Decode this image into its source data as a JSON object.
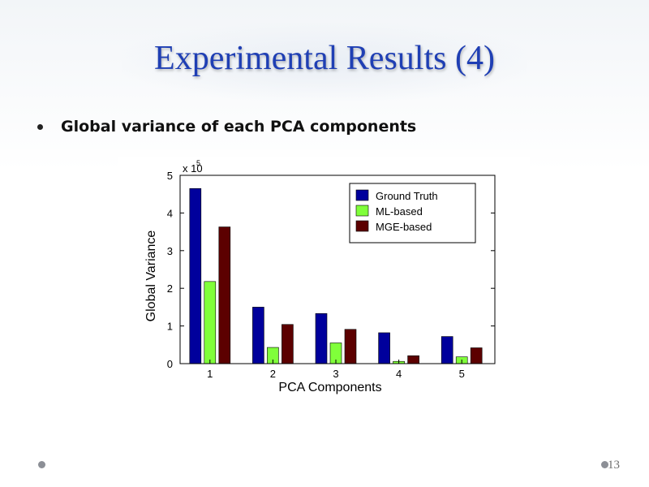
{
  "slide": {
    "title": "Experimental Results (4)",
    "bullet": "Global variance of each PCA components",
    "page_number": "13"
  },
  "colors": {
    "title": "#1f3fb4",
    "ground_truth": "#00009c",
    "ml_based": "#80ff3a",
    "mge_based": "#5c0000"
  },
  "chart_data": {
    "type": "bar",
    "categories": [
      "1",
      "2",
      "3",
      "4",
      "5"
    ],
    "series": [
      {
        "name": "Ground Truth",
        "color": "#00009c",
        "values": [
          4.65,
          1.5,
          1.33,
          0.82,
          0.72
        ]
      },
      {
        "name": "ML-based",
        "color": "#80ff3a",
        "values": [
          2.18,
          0.43,
          0.55,
          0.06,
          0.18
        ]
      },
      {
        "name": "MGE-based",
        "color": "#5c0000",
        "values": [
          3.63,
          1.04,
          0.91,
          0.21,
          0.42
        ]
      }
    ],
    "title": "",
    "xlabel": "PCA Components",
    "ylabel": "Global Variance",
    "yticks": [
      "0",
      "1",
      "2",
      "3",
      "4",
      "5"
    ],
    "ylim": [
      0,
      5
    ],
    "scale_base": "x 10",
    "scale_exponent": "5",
    "legend_position": "top-right",
    "grid": false
  }
}
